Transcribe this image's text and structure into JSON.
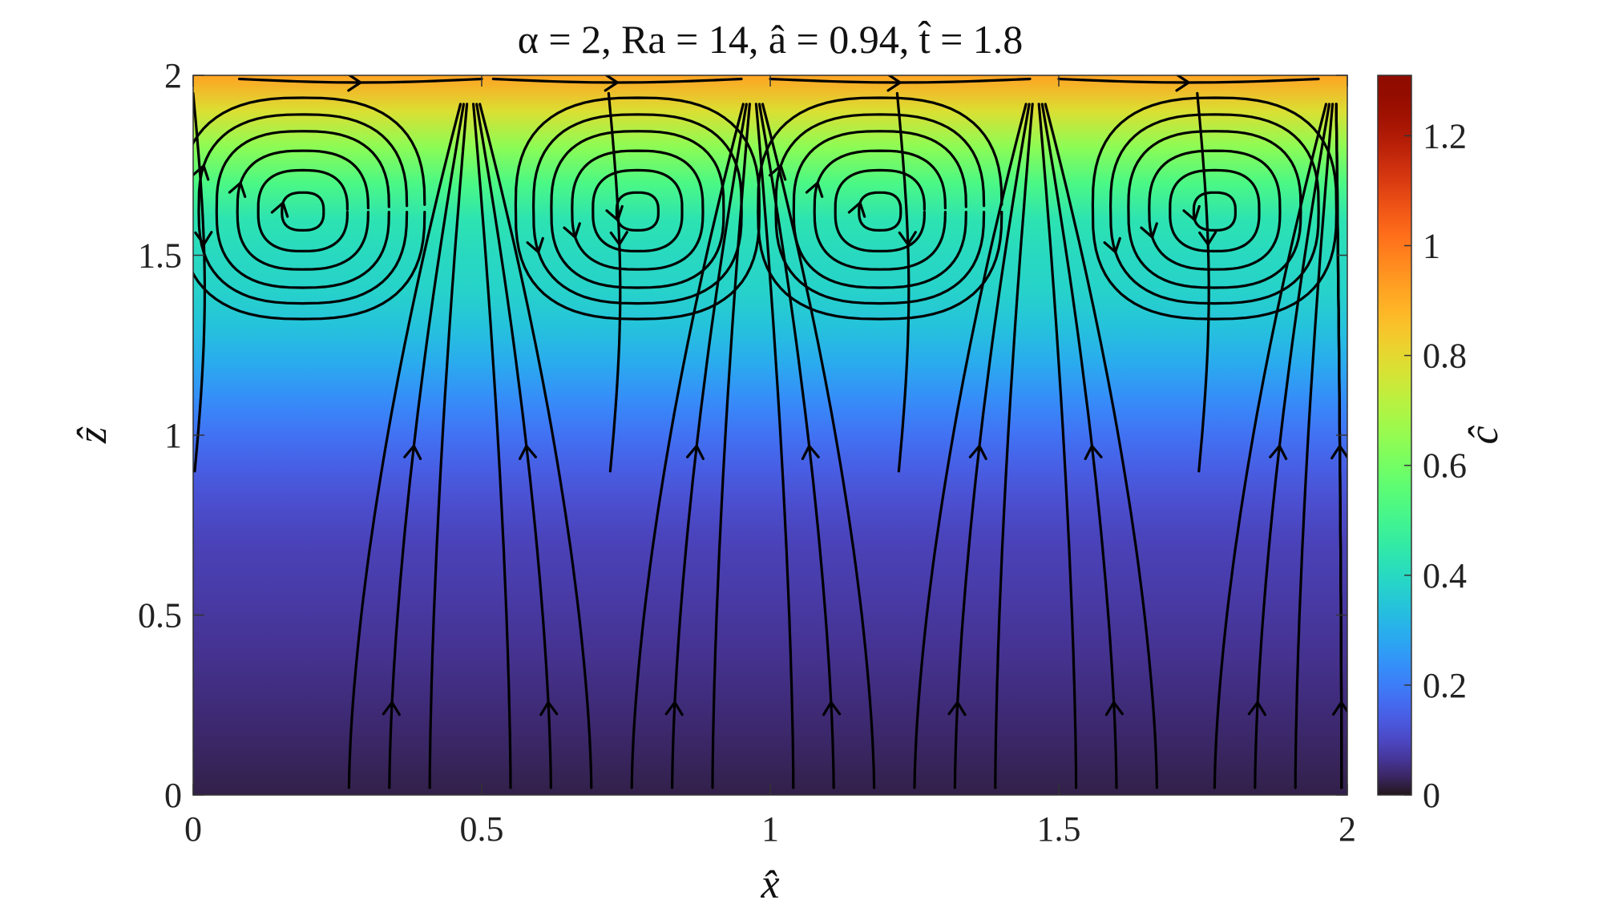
{
  "chart_data": {
    "type": "heatmap",
    "title": "α = 2, Ra = 14, â = 0.94, t̂ = 1.8",
    "xlabel": "x̂",
    "ylabel": "ẑ",
    "colorbar_label": "ĉ",
    "xlim": [
      0,
      2
    ],
    "ylim": [
      0,
      2
    ],
    "clim": [
      0,
      1.31
    ],
    "colormap": "turbo",
    "x_ticks": [
      {
        "value": 0,
        "label": "0"
      },
      {
        "value": 0.5,
        "label": "0.5"
      },
      {
        "value": 1,
        "label": "1"
      },
      {
        "value": 1.5,
        "label": "1.5"
      },
      {
        "value": 2,
        "label": "2"
      }
    ],
    "y_ticks": [
      {
        "value": 0,
        "label": "0"
      },
      {
        "value": 0.5,
        "label": "0.5"
      },
      {
        "value": 1,
        "label": "1"
      },
      {
        "value": 1.5,
        "label": "1.5"
      },
      {
        "value": 2,
        "label": "2"
      }
    ],
    "colorbar_ticks": [
      {
        "value": 0,
        "label": "0"
      },
      {
        "value": 0.2,
        "label": "0.2"
      },
      {
        "value": 0.4,
        "label": "0.4"
      },
      {
        "value": 0.6,
        "label": "0.6"
      },
      {
        "value": 0.8,
        "label": "0.8"
      },
      {
        "value": 1,
        "label": "1"
      },
      {
        "value": 1.2,
        "label": "1.2"
      }
    ],
    "field_profile": {
      "z": [
        0,
        0.1,
        0.2,
        0.3,
        0.4,
        0.5,
        0.6,
        0.7,
        0.8,
        0.9,
        1.0,
        1.1,
        1.2,
        1.3,
        1.4,
        1.5,
        1.6,
        1.7,
        1.8,
        1.9,
        2.0
      ],
      "c": [
        0.02,
        0.03,
        0.04,
        0.05,
        0.06,
        0.07,
        0.08,
        0.09,
        0.11,
        0.14,
        0.18,
        0.23,
        0.29,
        0.34,
        0.38,
        0.4,
        0.43,
        0.52,
        0.64,
        0.78,
        0.92
      ]
    },
    "convection_cells": [
      {
        "center_x": 0.19,
        "center_z": 1.62,
        "rotation": "clockwise"
      },
      {
        "center_x": 0.77,
        "center_z": 1.62,
        "rotation": "counterclockwise"
      },
      {
        "center_x": 1.19,
        "center_z": 1.62,
        "rotation": "clockwise"
      },
      {
        "center_x": 1.77,
        "center_z": 1.62,
        "rotation": "counterclockwise"
      }
    ],
    "upflow_columns_x": [
      0.48,
      0.97,
      1.46,
      1.98
    ]
  }
}
